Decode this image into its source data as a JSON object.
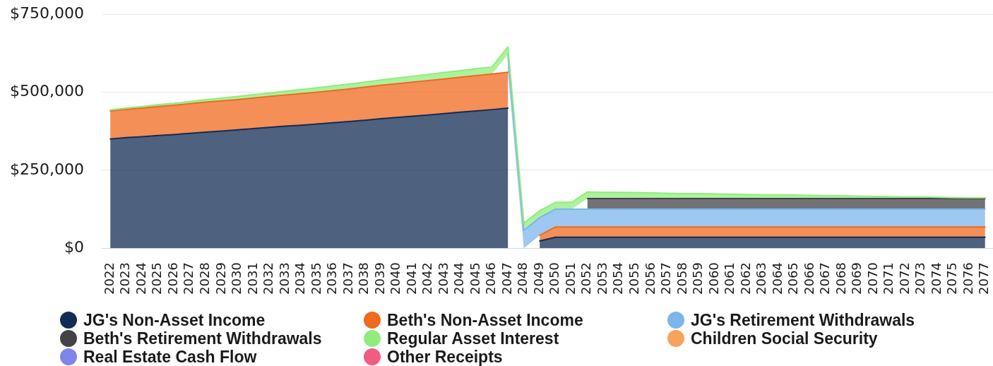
{
  "chart_data": {
    "type": "area",
    "stacked": true,
    "categories": [
      "2022",
      "2023",
      "2024",
      "2025",
      "2026",
      "2027",
      "2028",
      "2029",
      "2030",
      "2031",
      "2032",
      "2033",
      "2034",
      "2035",
      "2036",
      "2037",
      "2038",
      "2039",
      "2040",
      "2041",
      "2042",
      "2043",
      "2044",
      "2045",
      "2046",
      "2047",
      "2048",
      "2049",
      "2050",
      "2051",
      "2052",
      "2053",
      "2054",
      "2055",
      "2056",
      "2057",
      "2058",
      "2059",
      "2060",
      "2061",
      "2062",
      "2063",
      "2064",
      "2065",
      "2066",
      "2067",
      "2068",
      "2069",
      "2070",
      "2071",
      "2072",
      "2073",
      "2074",
      "2075",
      "2076",
      "2077"
    ],
    "series": [
      {
        "name": "JG's Non-Asset Income",
        "color": "#132c54",
        "values": [
          350000,
          354000,
          357000,
          361000,
          364000,
          368000,
          372000,
          375000,
          379000,
          383000,
          387000,
          391000,
          394000,
          398000,
          402000,
          406000,
          410000,
          415000,
          419000,
          423000,
          427000,
          431000,
          436000,
          440000,
          444000,
          449000,
          null,
          23000,
          35000,
          35000,
          35000,
          35000,
          35000,
          35000,
          35000,
          35000,
          35000,
          35000,
          35000,
          35000,
          35000,
          35000,
          35000,
          35000,
          35000,
          35000,
          35000,
          35000,
          35000,
          35000,
          35000,
          35000,
          35000,
          35000,
          35000,
          35000
        ]
      },
      {
        "name": "Beth's Non-Asset Income",
        "color": "#f06a1f",
        "values": [
          90000,
          91000,
          92000,
          93000,
          94000,
          95000,
          96000,
          97000,
          97000,
          98000,
          99000,
          100000,
          101000,
          102000,
          103000,
          104000,
          106000,
          107000,
          108000,
          109000,
          110000,
          111000,
          112000,
          113000,
          114000,
          115000,
          null,
          18000,
          33000,
          33000,
          33000,
          33000,
          33000,
          33000,
          33000,
          33000,
          33000,
          33000,
          33000,
          33000,
          33000,
          33000,
          33000,
          33000,
          33000,
          33000,
          33000,
          33000,
          33000,
          33000,
          33000,
          33000,
          33000,
          33000,
          33000,
          33000
        ]
      },
      {
        "name": "JG's Retirement Withdrawals",
        "color": "#7cb5ec",
        "values": [
          null,
          null,
          null,
          null,
          null,
          null,
          null,
          null,
          null,
          null,
          null,
          null,
          null,
          null,
          null,
          null,
          null,
          null,
          null,
          null,
          null,
          null,
          null,
          null,
          null,
          57000,
          57000,
          57000,
          57000,
          57000,
          57000,
          57000,
          57000,
          57000,
          57000,
          57000,
          57000,
          57000,
          57000,
          57000,
          57000,
          57000,
          57000,
          57000,
          57000,
          57000,
          57000,
          57000,
          57000,
          57000,
          57000,
          57000,
          57000,
          57000,
          57000,
          57000
        ]
      },
      {
        "name": "Beth's Retirement Withdrawals",
        "color": "#434348",
        "values": [
          null,
          null,
          null,
          null,
          null,
          null,
          null,
          null,
          null,
          null,
          null,
          null,
          null,
          null,
          null,
          null,
          null,
          null,
          null,
          null,
          null,
          null,
          null,
          null,
          null,
          null,
          null,
          null,
          null,
          null,
          34000,
          34000,
          34000,
          34000,
          34000,
          34000,
          34000,
          34000,
          34000,
          34000,
          34000,
          34000,
          34000,
          34000,
          34000,
          34000,
          34000,
          34000,
          34000,
          34000,
          34000,
          34000,
          34000,
          34000,
          34000,
          34000
        ]
      },
      {
        "name": "Regular Asset Interest",
        "color": "#90ed7d",
        "values": [
          3000,
          4000,
          5000,
          6000,
          6000,
          7000,
          8000,
          9000,
          10000,
          11000,
          11000,
          12000,
          13000,
          14000,
          15000,
          16000,
          16000,
          17000,
          18000,
          19000,
          20000,
          21000,
          21000,
          22000,
          23000,
          24000,
          23000,
          22000,
          22000,
          22000,
          21000,
          20000,
          20000,
          19000,
          18000,
          17000,
          16000,
          16000,
          15000,
          14000,
          13000,
          12000,
          12000,
          11000,
          10000,
          9000,
          9000,
          8000,
          7000,
          6000,
          5000,
          5000,
          4000,
          3000,
          2000,
          2000
        ]
      },
      {
        "name": "Children Social Security",
        "color": "#f7a35c",
        "values": [
          null,
          null,
          null,
          null,
          null,
          null,
          null,
          null,
          null,
          null,
          null,
          null,
          null,
          null,
          null,
          null,
          null,
          null,
          null,
          null,
          null,
          null,
          null,
          null,
          null,
          null,
          null,
          null,
          null,
          null,
          null,
          null,
          null,
          null,
          null,
          null,
          null,
          null,
          null,
          null,
          null,
          null,
          null,
          null,
          null,
          null,
          null,
          null,
          null,
          null,
          null,
          null,
          null,
          null,
          null,
          null
        ]
      },
      {
        "name": "Real Estate Cash Flow",
        "color": "#8085e9",
        "values": [
          null,
          null,
          null,
          null,
          null,
          null,
          null,
          null,
          null,
          null,
          null,
          null,
          null,
          null,
          null,
          null,
          null,
          null,
          null,
          null,
          null,
          null,
          null,
          null,
          null,
          null,
          null,
          null,
          null,
          null,
          null,
          null,
          null,
          null,
          null,
          null,
          null,
          null,
          null,
          null,
          null,
          null,
          null,
          null,
          null,
          null,
          null,
          null,
          null,
          null,
          null,
          null,
          null,
          null,
          null,
          null
        ]
      },
      {
        "name": "Other Receipts",
        "color": "#f15c80",
        "values": [
          null,
          null,
          null,
          null,
          null,
          null,
          null,
          null,
          null,
          null,
          null,
          null,
          null,
          null,
          null,
          null,
          null,
          null,
          null,
          null,
          null,
          null,
          null,
          null,
          null,
          null,
          null,
          null,
          null,
          null,
          null,
          null,
          null,
          null,
          null,
          null,
          null,
          null,
          null,
          null,
          null,
          null,
          null,
          null,
          null,
          null,
          null,
          null,
          null,
          null,
          null,
          null,
          null,
          null,
          null,
          null
        ]
      }
    ],
    "ylim": [
      0,
      750000
    ],
    "yticks": [
      {
        "value": 0,
        "label": "$0"
      },
      {
        "value": 250000,
        "label": "$250,000"
      },
      {
        "value": 500000,
        "label": "$500,000"
      },
      {
        "value": 750000,
        "label": "$750,000"
      }
    ],
    "grid": "y",
    "legend": "bottom"
  }
}
